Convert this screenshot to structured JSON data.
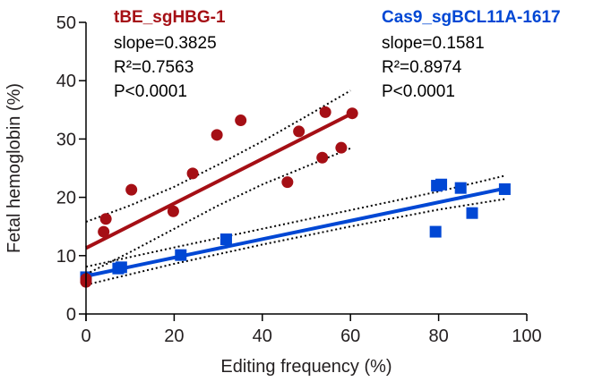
{
  "chart_data": {
    "type": "scatter",
    "title": "",
    "xlabel": "Editing frequency (%)",
    "ylabel": "Fetal hemoglobin (%)",
    "xlim": [
      0,
      100
    ],
    "ylim": [
      0,
      50
    ],
    "xticks": [
      0,
      20,
      40,
      60,
      80,
      100
    ],
    "yticks": [
      0,
      10,
      20,
      30,
      40,
      50
    ],
    "grid": false,
    "series": [
      {
        "name": "tBE_sgHBG-1",
        "color": "#a50f15",
        "marker": "circle",
        "points": [
          [
            0,
            6.0
          ],
          [
            0,
            5.5
          ],
          [
            4.0,
            14.1
          ],
          [
            4.5,
            16.3
          ],
          [
            10.3,
            21.3
          ],
          [
            19.8,
            17.6
          ],
          [
            24.2,
            24.1
          ],
          [
            29.7,
            30.7
          ],
          [
            35.1,
            33.2
          ],
          [
            45.7,
            22.6
          ],
          [
            48.3,
            31.3
          ],
          [
            53.6,
            26.8
          ],
          [
            54.3,
            34.6
          ],
          [
            57.9,
            28.5
          ],
          [
            60.4,
            34.4
          ]
        ],
        "fit": {
          "x_range": [
            0,
            60.4
          ],
          "intercept": 11.3,
          "slope": 0.3825
        },
        "ci_upper": [
          [
            0,
            15.8
          ],
          [
            10,
            18.6
          ],
          [
            20,
            21.8
          ],
          [
            30,
            25.6
          ],
          [
            40,
            29.6
          ],
          [
            50,
            33.9
          ],
          [
            60,
            38.3
          ]
        ],
        "ci_lower": [
          [
            0,
            6.8
          ],
          [
            10,
            10.6
          ],
          [
            20,
            14.6
          ],
          [
            30,
            18.6
          ],
          [
            40,
            22.2
          ],
          [
            50,
            25.3
          ],
          [
            60,
            28.4
          ]
        ],
        "annotation": {
          "title": "tBE_sgHBG-1",
          "lines": [
            "slope=0.3825",
            "R²=0.7563",
            "P<0.0001"
          ]
        }
      },
      {
        "name": "Cas9_sgBCL11A-1617",
        "color": "#0047d4",
        "marker": "square",
        "points": [
          [
            0,
            6.3
          ],
          [
            7.3,
            7.8
          ],
          [
            8.0,
            8.0
          ],
          [
            21.5,
            10.1
          ],
          [
            31.8,
            12.8
          ],
          [
            79.3,
            14.1
          ],
          [
            79.6,
            22.0
          ],
          [
            80.6,
            22.2
          ],
          [
            85.0,
            21.6
          ],
          [
            87.6,
            17.3
          ],
          [
            95.0,
            21.4
          ]
        ],
        "fit": {
          "x_range": [
            0,
            95.0
          ],
          "intercept": 6.5,
          "slope": 0.1581
        },
        "ci_upper": [
          [
            0,
            8.1
          ],
          [
            20,
            11.4
          ],
          [
            40,
            14.6
          ],
          [
            60,
            17.8
          ],
          [
            80,
            21.0
          ],
          [
            95,
            23.7
          ]
        ],
        "ci_lower": [
          [
            0,
            5.0
          ],
          [
            20,
            8.6
          ],
          [
            40,
            11.9
          ],
          [
            60,
            15.0
          ],
          [
            80,
            17.9
          ],
          [
            95,
            19.7
          ]
        ],
        "annotation": {
          "title": "Cas9_sgBCL11A-1617",
          "lines": [
            "slope=0.1581",
            "R²=0.8974",
            "P<0.0001"
          ]
        }
      }
    ]
  }
}
